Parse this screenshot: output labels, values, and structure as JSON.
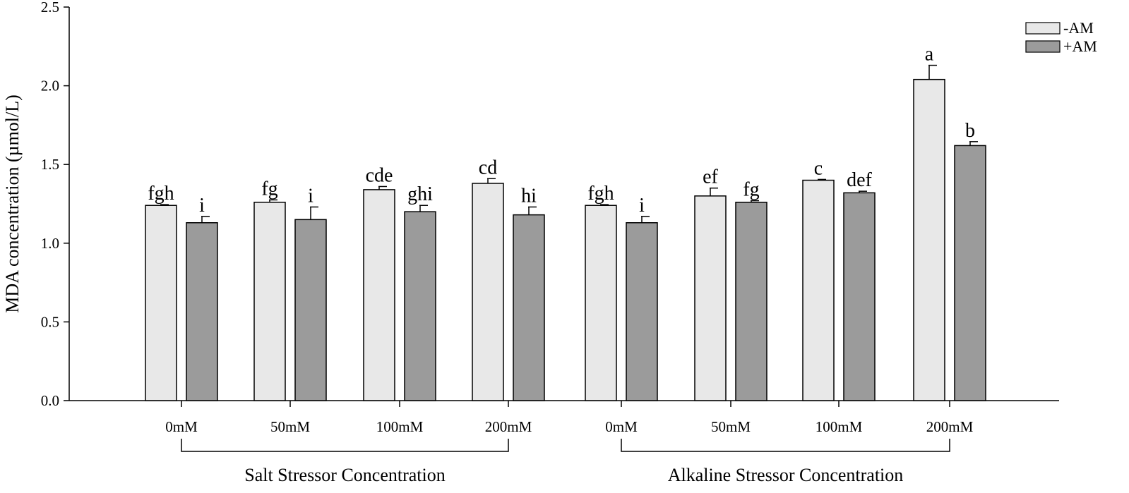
{
  "chart_data": {
    "type": "bar",
    "ylabel": "MDA concentration (µmol/L)",
    "ylim": [
      0,
      2.5
    ],
    "yticks": [
      "0.0",
      "0.5",
      "1.0",
      "1.5",
      "2.0",
      "2.5"
    ],
    "categories": [
      "0mM",
      "50mM",
      "100mM",
      "200mM",
      "0mM",
      "50mM",
      "100mM",
      "200mM"
    ],
    "groups": [
      {
        "label": "Salt Stressor Concentration",
        "from": 0,
        "to": 3
      },
      {
        "label": "Alkaline Stressor Concentration",
        "from": 4,
        "to": 7
      }
    ],
    "series": [
      {
        "name": "-AM",
        "color": "#e8e8e8",
        "values": [
          1.24,
          1.26,
          1.34,
          1.38,
          1.24,
          1.3,
          1.4,
          2.04
        ],
        "errors": [
          0.005,
          0.015,
          0.02,
          0.03,
          0.005,
          0.05,
          0.005,
          0.09
        ],
        "labels": [
          "fgh",
          "fg",
          "cde",
          "cd",
          "fgh",
          "ef",
          "c",
          "a"
        ]
      },
      {
        "name": "+AM",
        "color": "#9b9b9b",
        "values": [
          1.13,
          1.15,
          1.2,
          1.18,
          1.13,
          1.26,
          1.32,
          1.62
        ],
        "errors": [
          0.04,
          0.08,
          0.04,
          0.05,
          0.04,
          0.01,
          0.01,
          0.025
        ],
        "labels": [
          "i",
          "i",
          "ghi",
          "hi",
          "i",
          "fg",
          "def",
          "b"
        ]
      }
    ],
    "legend_position": "top-right"
  }
}
